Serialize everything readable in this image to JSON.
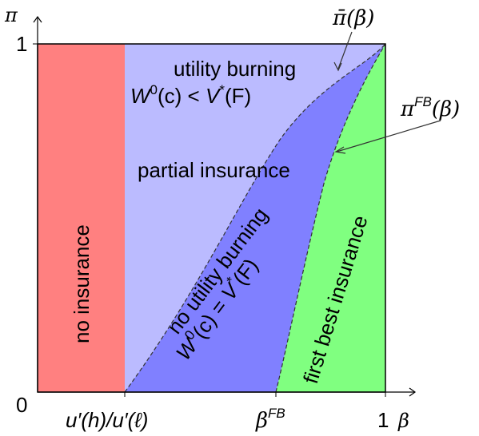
{
  "axes": {
    "y_label": "π",
    "x_label": "β",
    "origin_label": "0",
    "y_tick_1": "1",
    "x_tick_1": "1",
    "x_tick_threshold": "u′(h)/u′(ℓ)",
    "x_tick_beta_fb": "β",
    "x_tick_beta_fb_sup": "FB"
  },
  "regions": {
    "no_insurance": {
      "label": "no insurance",
      "color": "#ff8080"
    },
    "utility_burning": {
      "label": "utility burning",
      "color": "#bbbbff"
    },
    "partial_insurance": {
      "label": "partial insurance"
    },
    "no_utility_burning": {
      "label": "no utility burning",
      "color": "#8080ff"
    },
    "first_best": {
      "label": "first best insurance",
      "color": "#80ff80"
    }
  },
  "conditions": {
    "lt": {
      "W": "W",
      "sup0": "0",
      "arg": "(c) < ",
      "V": "V",
      "star": "*",
      "tail": "(F)"
    },
    "eq": {
      "W": "W",
      "sup0": "0",
      "arg": "(c) = ",
      "V": "V",
      "star": "*",
      "tail": "(F)"
    }
  },
  "curves": {
    "pi_bar": {
      "label": "π̄(β)"
    },
    "pi_fb": {
      "label_pi": "π",
      "label_sup": "FB",
      "label_arg": "(β)"
    }
  }
}
